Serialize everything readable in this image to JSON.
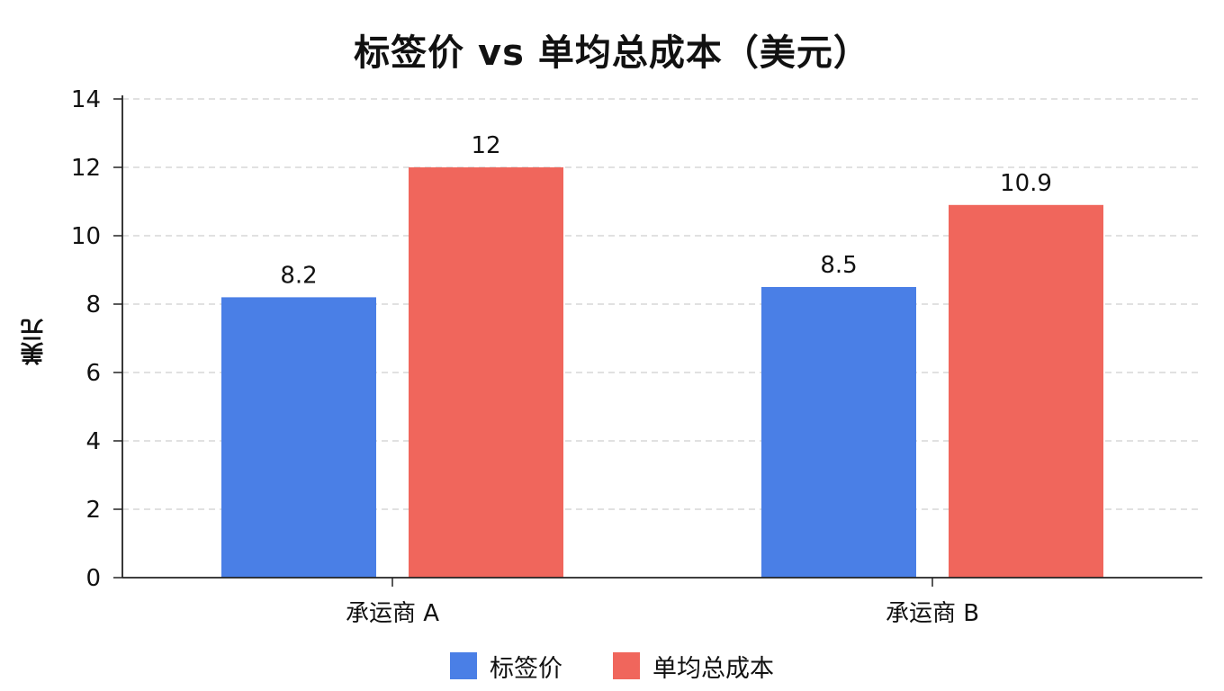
{
  "chart_data": {
    "type": "bar",
    "title": "标签价 vs 单均总成本（美元）",
    "xlabel": "",
    "ylabel": "美元",
    "categories": [
      "承运商 A",
      "承运商 B"
    ],
    "series": [
      {
        "name": "标签价",
        "values": [
          8.2,
          8.5
        ],
        "color": "#4a7fe6"
      },
      {
        "name": "单均总成本",
        "values": [
          12,
          10.9
        ],
        "color": "#f0665c"
      }
    ],
    "data_labels": [
      [
        "8.2",
        "8.5"
      ],
      [
        "12",
        "10.9"
      ]
    ],
    "ylim": [
      0,
      14
    ],
    "yticks": [
      0,
      2,
      4,
      6,
      8,
      10,
      12,
      14
    ],
    "grid": true,
    "legend_position": "bottom"
  }
}
